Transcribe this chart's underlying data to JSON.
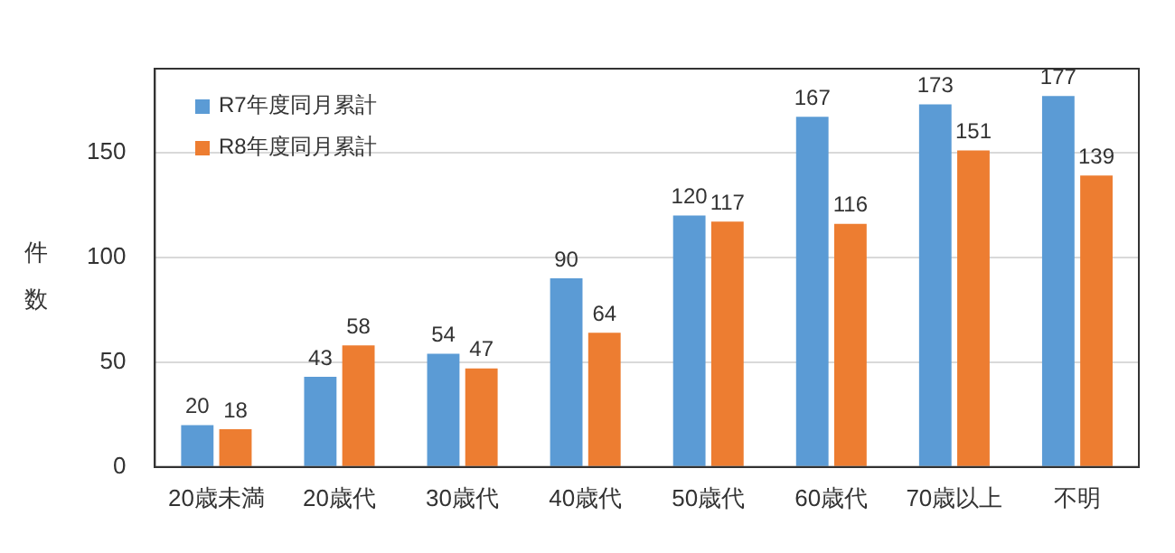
{
  "chart_data": {
    "type": "bar",
    "ylabel": "件数",
    "categories": [
      "20歳未満",
      "20歳代",
      "30歳代",
      "40歳代",
      "50歳代",
      "60歳代",
      "70歳以上",
      "不明"
    ],
    "series": [
      {
        "name": "R7年度同月累計",
        "color": "#5b9bd5",
        "values": [
          20,
          43,
          54,
          90,
          120,
          167,
          173,
          177
        ]
      },
      {
        "name": "R8年度同月累計",
        "color": "#ed7d31",
        "values": [
          18,
          58,
          47,
          64,
          117,
          116,
          151,
          139
        ]
      }
    ],
    "ylim": [
      0,
      190
    ],
    "yticks": [
      0,
      50,
      100,
      150
    ],
    "grid": "y",
    "legend": "top left",
    "data_labels": true
  }
}
